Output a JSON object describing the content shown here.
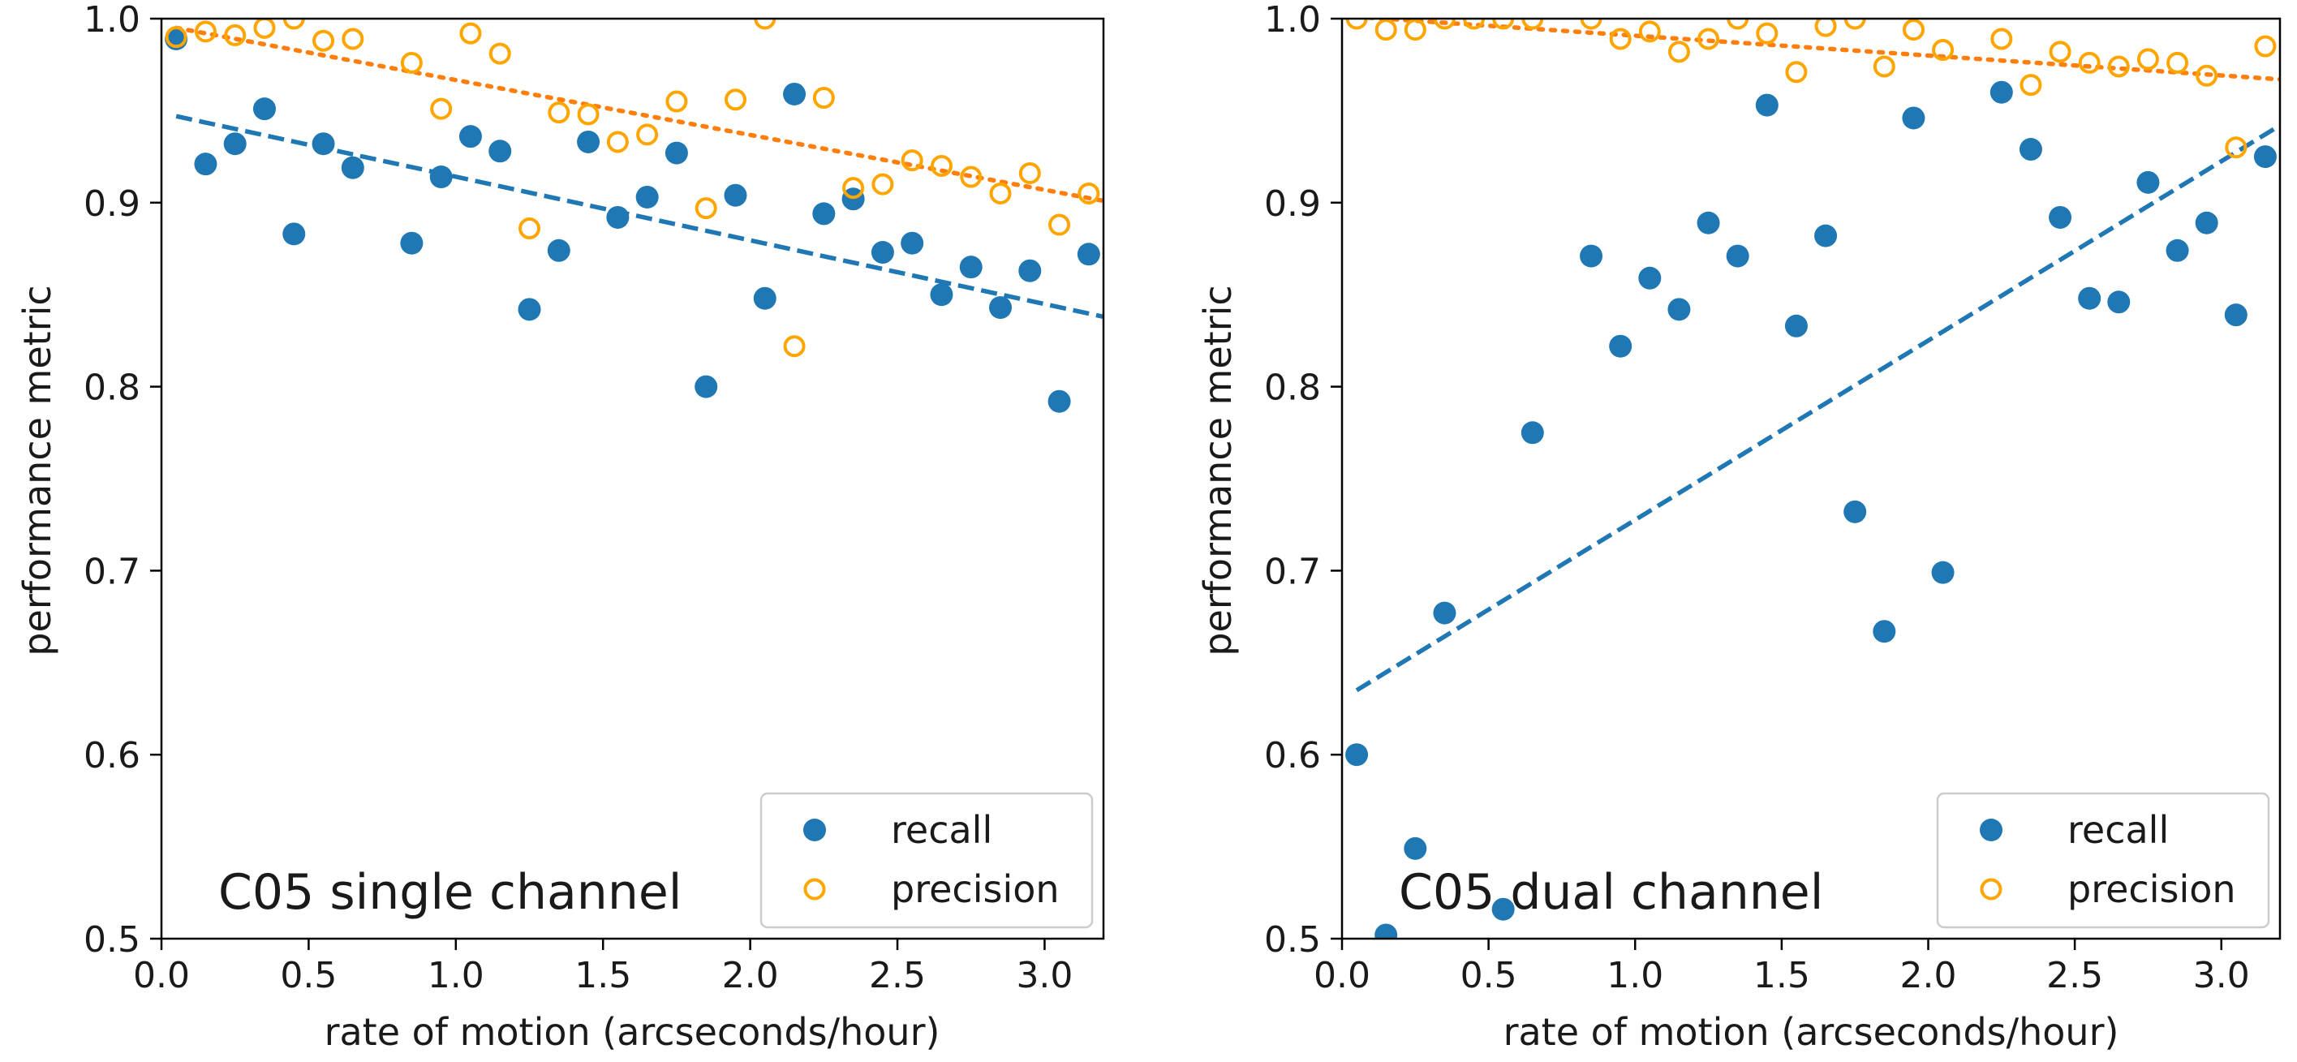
{
  "chart_data": [
    {
      "type": "scatter",
      "annotation": "C05 single channel",
      "xlabel": "rate of motion (arcseconds/hour)",
      "ylabel": "performance metric",
      "xlim": [
        0.0,
        3.2
      ],
      "ylim": [
        0.5,
        1.0
      ],
      "xticks": [
        "0.0",
        "0.5",
        "1.0",
        "1.5",
        "2.0",
        "2.5",
        "3.0"
      ],
      "yticks": [
        "0.5",
        "0.6",
        "0.7",
        "0.8",
        "0.9",
        "1.0"
      ],
      "grid": false,
      "legend": {
        "placement": "lower-right",
        "entries": [
          "recall",
          "precision"
        ]
      },
      "series": [
        {
          "name": "recall",
          "marker": "filled-circle",
          "color": "#1f77b4",
          "x": [
            0.05,
            0.15,
            0.25,
            0.35,
            0.45,
            0.55,
            0.65,
            0.85,
            0.95,
            1.05,
            1.15,
            1.25,
            1.35,
            1.45,
            1.55,
            1.65,
            1.75,
            1.85,
            1.95,
            2.05,
            2.15,
            2.25,
            2.35,
            2.45,
            2.55,
            2.65,
            2.75,
            2.85,
            2.95,
            3.05,
            3.15
          ],
          "y": [
            0.989,
            0.921,
            0.932,
            0.951,
            0.883,
            0.932,
            0.919,
            0.878,
            0.914,
            0.936,
            0.928,
            0.842,
            0.874,
            0.933,
            0.892,
            0.903,
            0.927,
            0.8,
            0.904,
            0.848,
            0.959,
            0.894,
            0.902,
            0.873,
            0.878,
            0.85,
            0.865,
            0.843,
            0.863,
            0.792,
            0.872
          ]
        },
        {
          "name": "precision",
          "marker": "open-circle",
          "color": "#ffa500",
          "x": [
            0.05,
            0.15,
            0.25,
            0.35,
            0.45,
            0.55,
            0.65,
            0.85,
            0.95,
            1.05,
            1.15,
            1.25,
            1.35,
            1.45,
            1.55,
            1.65,
            1.75,
            1.85,
            1.95,
            2.05,
            2.15,
            2.25,
            2.35,
            2.45,
            2.55,
            2.65,
            2.75,
            2.85,
            2.95,
            3.05,
            3.15
          ],
          "y": [
            0.99,
            0.993,
            0.991,
            0.995,
            1.0,
            0.988,
            0.989,
            0.976,
            0.951,
            0.992,
            0.981,
            0.886,
            0.949,
            0.948,
            0.933,
            0.937,
            0.955,
            0.897,
            0.956,
            1.0,
            0.822,
            0.957,
            0.908,
            0.91,
            0.923,
            0.92,
            0.914,
            0.905,
            0.916,
            0.888,
            0.905
          ]
        }
      ],
      "fits": [
        {
          "series": "recall",
          "style": "dashed",
          "color": "#1f77b4",
          "x": [
            0.05,
            3.2
          ],
          "y": [
            0.947,
            0.838
          ]
        },
        {
          "series": "precision",
          "style": "dotted",
          "color": "#ff7f0e",
          "x": [
            0.05,
            3.2
          ],
          "y": [
            0.995,
            0.901
          ]
        }
      ]
    },
    {
      "type": "scatter",
      "annotation": "C05 dual channel",
      "xlabel": "rate of motion (arcseconds/hour)",
      "ylabel": "performance metric",
      "xlim": [
        0.0,
        3.2
      ],
      "ylim": [
        0.5,
        1.0
      ],
      "xticks": [
        "0.0",
        "0.5",
        "1.0",
        "1.5",
        "2.0",
        "2.5",
        "3.0"
      ],
      "yticks": [
        "0.5",
        "0.6",
        "0.7",
        "0.8",
        "0.9",
        "1.0"
      ],
      "grid": false,
      "legend": {
        "placement": "lower-right",
        "entries": [
          "recall",
          "precision"
        ]
      },
      "series": [
        {
          "name": "recall",
          "marker": "filled-circle",
          "color": "#1f77b4",
          "x": [
            0.05,
            0.15,
            0.25,
            0.35,
            0.55,
            0.65,
            0.85,
            0.95,
            1.05,
            1.15,
            1.25,
            1.35,
            1.45,
            1.55,
            1.65,
            1.75,
            1.85,
            1.95,
            2.05,
            2.25,
            2.35,
            2.45,
            2.55,
            2.65,
            2.75,
            2.85,
            2.95,
            3.05,
            3.15
          ],
          "y": [
            0.6,
            0.502,
            0.549,
            0.677,
            0.516,
            0.775,
            0.871,
            0.822,
            0.859,
            0.842,
            0.889,
            0.871,
            0.953,
            0.833,
            0.882,
            0.732,
            0.667,
            0.946,
            0.699,
            0.96,
            0.929,
            0.892,
            0.848,
            0.846,
            0.911,
            0.874,
            0.889,
            0.839,
            0.925
          ]
        },
        {
          "name": "precision",
          "marker": "open-circle",
          "color": "#ffa500",
          "x": [
            0.05,
            0.15,
            0.25,
            0.35,
            0.45,
            0.55,
            0.65,
            0.85,
            0.95,
            1.05,
            1.15,
            1.25,
            1.35,
            1.45,
            1.55,
            1.65,
            1.75,
            1.85,
            1.95,
            2.05,
            2.25,
            2.35,
            2.45,
            2.55,
            2.65,
            2.75,
            2.85,
            2.95,
            3.05,
            3.15
          ],
          "y": [
            1.0,
            0.994,
            0.994,
            1.0,
            1.0,
            1.0,
            1.0,
            1.0,
            0.989,
            0.993,
            0.982,
            0.989,
            1.0,
            0.992,
            0.971,
            0.996,
            1.0,
            0.974,
            0.994,
            0.983,
            0.989,
            0.964,
            0.982,
            0.976,
            0.974,
            0.978,
            0.976,
            0.969,
            0.93,
            0.985
          ]
        }
      ],
      "fits": [
        {
          "series": "recall",
          "style": "dashed",
          "color": "#1f77b4",
          "x": [
            0.05,
            3.2
          ],
          "y": [
            0.635,
            0.942
          ]
        },
        {
          "series": "precision",
          "style": "dotted",
          "color": "#ff7f0e",
          "x": [
            0.05,
            3.2
          ],
          "y": [
            1.001,
            0.967
          ]
        }
      ]
    }
  ]
}
